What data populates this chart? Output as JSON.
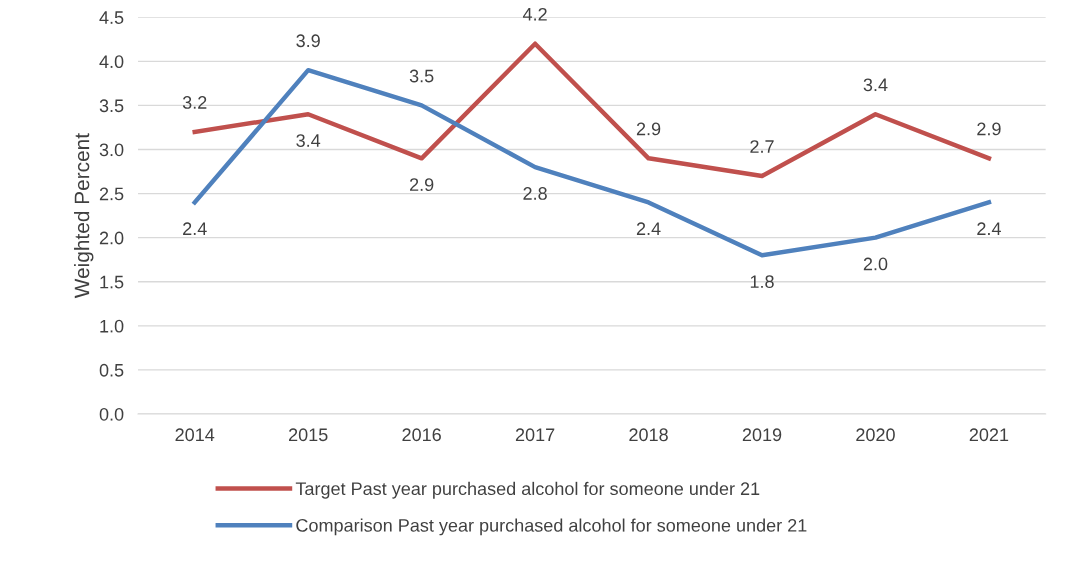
{
  "chart_data": {
    "type": "line",
    "ylabel": "Weighted Percent",
    "categories": [
      "2014",
      "2015",
      "2016",
      "2017",
      "2018",
      "2019",
      "2020",
      "2021"
    ],
    "series": [
      {
        "name": "Target Past year purchased alcohol for someone under 21",
        "color": "#c0504d",
        "values": [
          3.2,
          3.4,
          2.9,
          4.2,
          2.9,
          2.7,
          3.4,
          2.9
        ],
        "value_labels": [
          "3.2",
          "3.4",
          "2.9",
          "4.2",
          "2.9",
          "2.7",
          "3.4",
          "2.9"
        ]
      },
      {
        "name": "Comparison Past year purchased alcohol for someone under 21",
        "color": "#4f81bd",
        "values": [
          2.4,
          3.9,
          3.5,
          2.8,
          2.4,
          1.8,
          2.0,
          2.4
        ],
        "value_labels": [
          "2.4",
          "3.9",
          "3.5",
          "2.8",
          "2.4",
          "1.8",
          "2.0",
          "2.4"
        ]
      }
    ],
    "ylim": [
      0,
      4.5
    ],
    "yticks": [
      "0.0",
      "0.5",
      "1.0",
      "1.5",
      "2.0",
      "2.5",
      "3.0",
      "3.5",
      "4.0",
      "4.5"
    ],
    "grid": "y",
    "legend": "bottom",
    "marker": "none",
    "line_style": "solid"
  }
}
